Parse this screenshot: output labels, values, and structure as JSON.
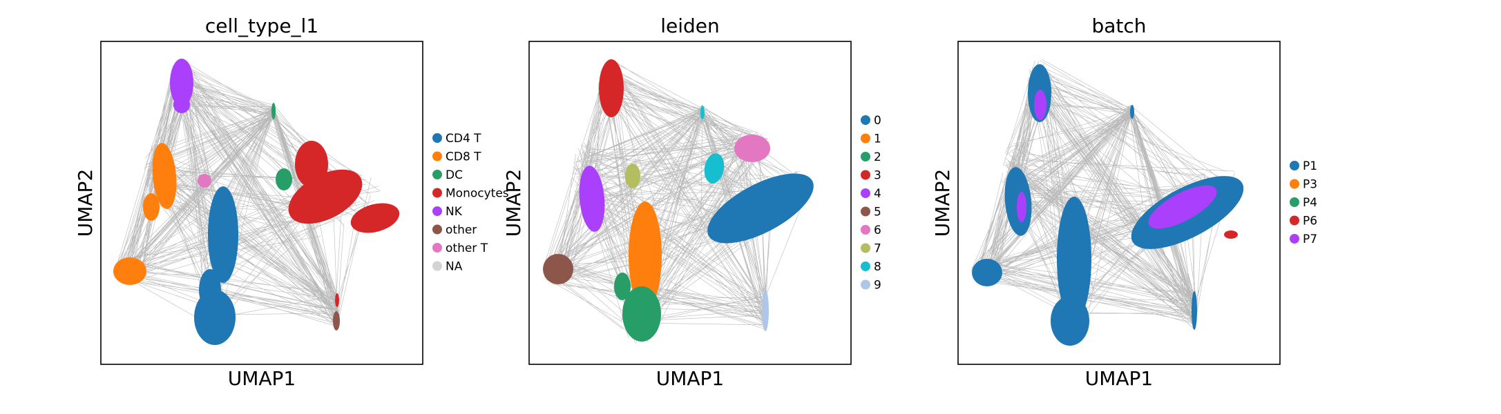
{
  "chart_data": [
    {
      "type": "scatter",
      "subtype": "umap-embedding-with-connectivity-edges",
      "title": "cell_type_l1",
      "xlabel": "UMAP1",
      "ylabel": "UMAP2",
      "ticks": false,
      "grid": false,
      "legend_placement": "right",
      "edge_color": "#808080",
      "legend": [
        {
          "label": "CD4 T",
          "color": "#1f77b4"
        },
        {
          "label": "CD8 T",
          "color": "#ff7f0e"
        },
        {
          "label": "DC",
          "color": "#279e68"
        },
        {
          "label": "Monocytes",
          "color": "#d62728"
        },
        {
          "label": "NK",
          "color": "#aa40fc"
        },
        {
          "label": "other",
          "color": "#8c564b"
        },
        {
          "label": "other T",
          "color": "#e377c2"
        },
        {
          "label": "NA",
          "color": "#d3d3d3"
        }
      ]
    },
    {
      "type": "scatter",
      "subtype": "umap-embedding-with-connectivity-edges",
      "title": "leiden",
      "xlabel": "UMAP1",
      "ylabel": "UMAP2",
      "ticks": false,
      "grid": false,
      "legend_placement": "right",
      "edge_color": "#808080",
      "legend": [
        {
          "label": "0",
          "color": "#1f77b4"
        },
        {
          "label": "1",
          "color": "#ff7f0e"
        },
        {
          "label": "2",
          "color": "#279e68"
        },
        {
          "label": "3",
          "color": "#d62728"
        },
        {
          "label": "4",
          "color": "#aa40fc"
        },
        {
          "label": "5",
          "color": "#8c564b"
        },
        {
          "label": "6",
          "color": "#e377c2"
        },
        {
          "label": "7",
          "color": "#b5bd61"
        },
        {
          "label": "8",
          "color": "#17becf"
        },
        {
          "label": "9",
          "color": "#aec7e8"
        }
      ]
    },
    {
      "type": "scatter",
      "subtype": "umap-embedding-with-connectivity-edges",
      "title": "batch",
      "xlabel": "UMAP1",
      "ylabel": "UMAP2",
      "ticks": false,
      "grid": false,
      "legend_placement": "right",
      "edge_color": "#808080",
      "legend": [
        {
          "label": "P1",
          "color": "#1f77b4"
        },
        {
          "label": "P3",
          "color": "#ff7f0e"
        },
        {
          "label": "P4",
          "color": "#279e68"
        },
        {
          "label": "P6",
          "color": "#d62728"
        },
        {
          "label": "P7",
          "color": "#aa40fc"
        }
      ]
    }
  ]
}
